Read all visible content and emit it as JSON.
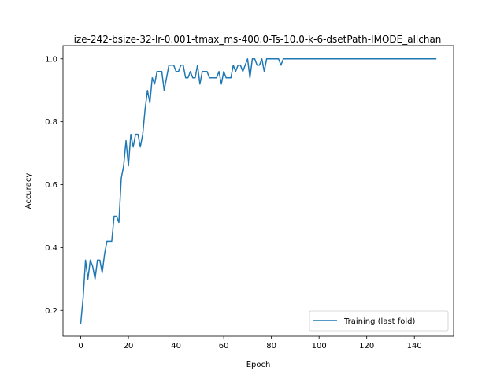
{
  "chart_data": {
    "type": "line",
    "title": "ize-242-bsize-32-lr-0.001-tmax_ms-400.0-Ts-10.0-k-6-dsetPath-IMODE_allchan",
    "xlabel": "Epoch",
    "ylabel": "Accuracy",
    "xlim": [
      -7.45,
      156.45
    ],
    "ylim": [
      0.118,
      1.042
    ],
    "xticks": [
      0,
      20,
      40,
      60,
      80,
      100,
      120,
      140
    ],
    "yticks": [
      0.2,
      0.4,
      0.6,
      0.8,
      1.0
    ],
    "ytick_labels": [
      "0.2",
      "0.4",
      "0.6",
      "0.8",
      "1.0"
    ],
    "legend_position": "lower-right",
    "grid": false,
    "series": [
      {
        "name": "Training (last fold)",
        "color": "#1f77b4",
        "x": [
          0,
          1,
          2,
          3,
          4,
          5,
          6,
          7,
          8,
          9,
          10,
          11,
          12,
          13,
          14,
          15,
          16,
          17,
          18,
          19,
          20,
          21,
          22,
          23,
          24,
          25,
          26,
          27,
          28,
          29,
          30,
          31,
          32,
          33,
          34,
          35,
          36,
          37,
          38,
          39,
          40,
          41,
          42,
          43,
          44,
          45,
          46,
          47,
          48,
          49,
          50,
          51,
          52,
          53,
          54,
          55,
          56,
          57,
          58,
          59,
          60,
          61,
          62,
          63,
          64,
          65,
          66,
          67,
          68,
          69,
          70,
          71,
          72,
          73,
          74,
          75,
          76,
          77,
          78,
          79,
          80,
          81,
          82,
          83,
          84,
          85,
          86,
          87,
          88,
          89,
          90,
          91,
          92,
          93,
          94,
          95,
          96,
          97,
          98,
          99,
          100,
          101,
          102,
          103,
          104,
          105,
          106,
          107,
          108,
          109,
          110,
          111,
          112,
          113,
          114,
          115,
          116,
          117,
          118,
          119,
          120,
          121,
          122,
          123,
          124,
          125,
          126,
          127,
          128,
          129,
          130,
          131,
          132,
          133,
          134,
          135,
          136,
          137,
          138,
          139,
          140,
          141,
          142,
          143,
          144,
          145,
          146,
          147,
          148,
          149
        ],
        "y": [
          0.16,
          0.24,
          0.36,
          0.3,
          0.36,
          0.34,
          0.3,
          0.36,
          0.36,
          0.32,
          0.38,
          0.42,
          0.42,
          0.42,
          0.5,
          0.5,
          0.48,
          0.62,
          0.66,
          0.74,
          0.66,
          0.76,
          0.72,
          0.76,
          0.76,
          0.72,
          0.76,
          0.84,
          0.9,
          0.86,
          0.94,
          0.92,
          0.96,
          0.96,
          0.96,
          0.9,
          0.94,
          0.98,
          0.98,
          0.98,
          0.96,
          0.96,
          0.98,
          0.98,
          0.94,
          0.94,
          0.96,
          0.94,
          0.94,
          0.98,
          0.92,
          0.96,
          0.96,
          0.96,
          0.94,
          0.94,
          0.94,
          0.94,
          0.96,
          0.92,
          0.96,
          0.94,
          0.94,
          0.94,
          0.98,
          0.96,
          0.98,
          0.98,
          0.96,
          0.98,
          1.0,
          0.94,
          1.0,
          1.0,
          0.98,
          0.98,
          1.0,
          0.96,
          1.0,
          1.0,
          1.0,
          1.0,
          1.0,
          1.0,
          0.98,
          1.0,
          1.0,
          1.0,
          1.0,
          1.0,
          1.0,
          1.0,
          1.0,
          1.0,
          1.0,
          1.0,
          1.0,
          1.0,
          1.0,
          1.0,
          1.0,
          1.0,
          1.0,
          1.0,
          1.0,
          1.0,
          1.0,
          1.0,
          1.0,
          1.0,
          1.0,
          1.0,
          1.0,
          1.0,
          1.0,
          1.0,
          1.0,
          1.0,
          1.0,
          1.0,
          1.0,
          1.0,
          1.0,
          1.0,
          1.0,
          1.0,
          1.0,
          1.0,
          1.0,
          1.0,
          1.0,
          1.0,
          1.0,
          1.0,
          1.0,
          1.0,
          1.0,
          1.0,
          1.0,
          1.0,
          1.0,
          1.0,
          1.0,
          1.0,
          1.0,
          1.0,
          1.0,
          1.0,
          1.0,
          1.0
        ]
      }
    ]
  }
}
